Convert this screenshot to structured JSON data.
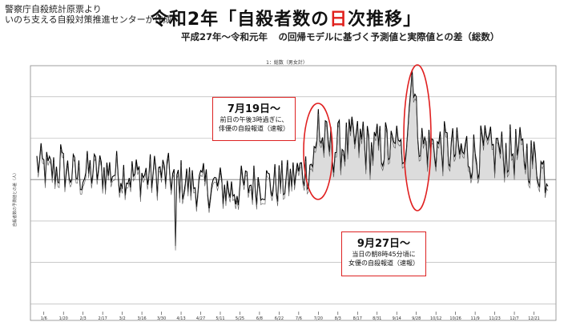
{
  "source": {
    "line1": "警察庁自殺統計原票より",
    "line2": "いのち支える自殺対策推進センターが作成"
  },
  "title": {
    "pre": "令和2年「自殺者数の",
    "red1": "日",
    "mid": "次",
    "post": "推移」"
  },
  "subtitle": {
    "left": "平成27年～令和元年",
    "right": "の回帰モデルに基づく予測値と実際値との差（総数）"
  },
  "chart_data": {
    "type": "line",
    "panel_title": "1：総数（男女計）",
    "ylabel": "自殺者数の予測値との差（人）",
    "categories": [
      "1/6",
      "1/20",
      "2/3",
      "2/17",
      "3/2",
      "3/16",
      "3/30",
      "4/13",
      "4/27",
      "5/11",
      "5/25",
      "6/8",
      "6/22",
      "7/6",
      "7/20",
      "8/3",
      "8/17",
      "8/31",
      "9/14",
      "9/28",
      "10/12",
      "10/26",
      "11/9",
      "11/23",
      "12/7",
      "12/21"
    ],
    "ytick_labels": [
      "",
      "",
      "",
      "",
      "",
      ""
    ],
    "ytick_values": [
      40,
      20,
      0,
      -20,
      -40,
      -60
    ],
    "ylim": [
      -68,
      55
    ],
    "series_note": "daily difference from predicted value (estimated, days 1-366)",
    "anchor_days": [
      1,
      10,
      20,
      30,
      40,
      50,
      60,
      70,
      80,
      90,
      100,
      110,
      120,
      130,
      140,
      150,
      160,
      170,
      180,
      187,
      195,
      200,
      202,
      205,
      212,
      220,
      230,
      240,
      250,
      260,
      265,
      269,
      271,
      275,
      280,
      290,
      300,
      310,
      320,
      330,
      340,
      350,
      360,
      366
    ],
    "anchor_values": [
      8,
      4,
      5,
      2,
      4,
      4,
      4,
      2,
      2,
      3,
      1,
      -2,
      -3,
      -3,
      -5,
      -3,
      -1,
      -2,
      -1,
      3,
      6,
      12,
      22,
      18,
      15,
      17,
      18,
      14,
      17,
      10,
      22,
      50,
      38,
      18,
      16,
      16,
      13,
      12,
      14,
      12,
      14,
      12,
      7,
      3
    ],
    "spikes": [
      [
        18,
        17
      ],
      [
        100,
        -32
      ],
      [
        143,
        -12
      ],
      [
        202,
        34
      ],
      [
        234,
        28
      ],
      [
        258,
        26
      ],
      [
        269,
        53
      ],
      [
        272,
        40
      ],
      [
        308,
        21
      ],
      [
        330,
        20
      ],
      [
        347,
        19
      ]
    ],
    "annotations": [
      {
        "date": "7月19日～",
        "lines": [
          "前日の午後3時過ぎに、",
          "俳優の自殺報道（速報）"
        ]
      },
      {
        "date": "9月27日～",
        "lines": [
          "当日の朝8時45分頃に",
          "女優の自殺報道（速報）"
        ]
      }
    ]
  }
}
